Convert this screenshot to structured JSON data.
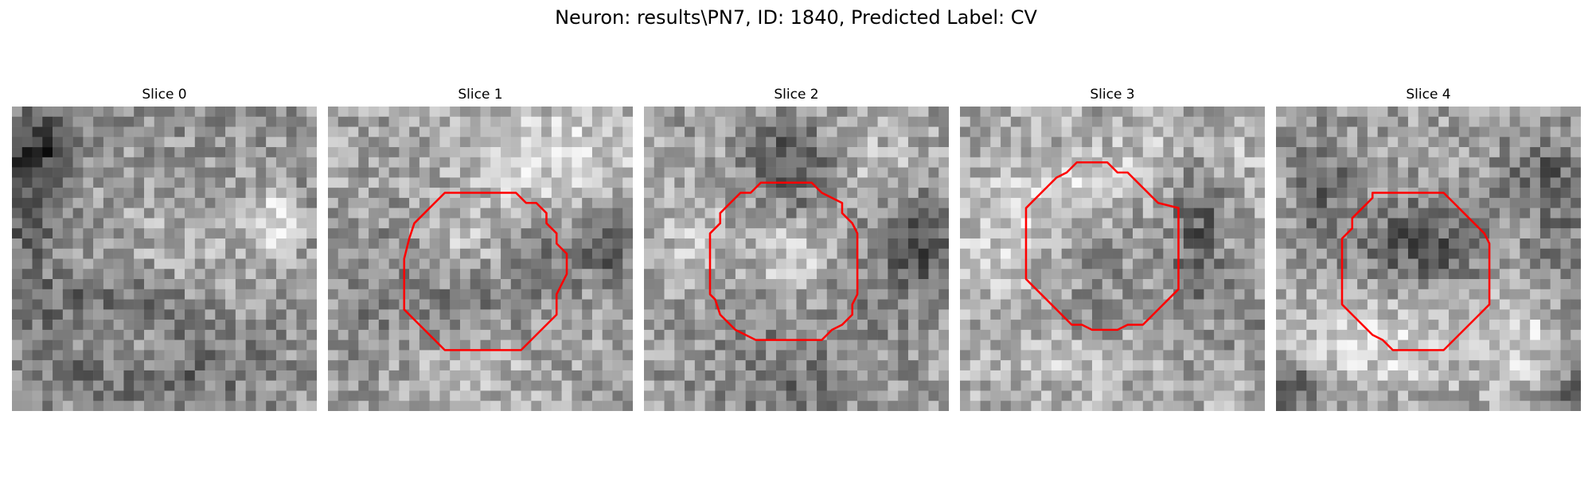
{
  "figure": {
    "title": "Neuron: results\\PN7, ID: 1840, Predicted Label: CV"
  },
  "colors": {
    "background": "#ffffff",
    "contour": "#ff0000"
  },
  "colormap": "gray",
  "panels": [
    {
      "title": "Slice 0",
      "has_contour": false,
      "image_description_tags": [
        "dark-left-edge",
        "bright-spot-upper-right",
        "dark-band-lower"
      ]
    },
    {
      "title": "Slice 1",
      "has_contour": true,
      "image_description_tags": [
        "bright-upper-right",
        "dark-ring",
        "bright-center-spot"
      ]
    },
    {
      "title": "Slice 2",
      "has_contour": true,
      "image_description_tags": [
        "dark-top-center",
        "bright-center-blob",
        "dark-right-edge"
      ]
    },
    {
      "title": "Slice 3",
      "has_contour": true,
      "image_description_tags": [
        "bright-left",
        "dark-right-streak",
        "medium-center"
      ]
    },
    {
      "title": "Slice 4",
      "has_contour": true,
      "image_description_tags": [
        "dark-upper-center",
        "bright-lower",
        "dark-corners"
      ]
    }
  ]
}
